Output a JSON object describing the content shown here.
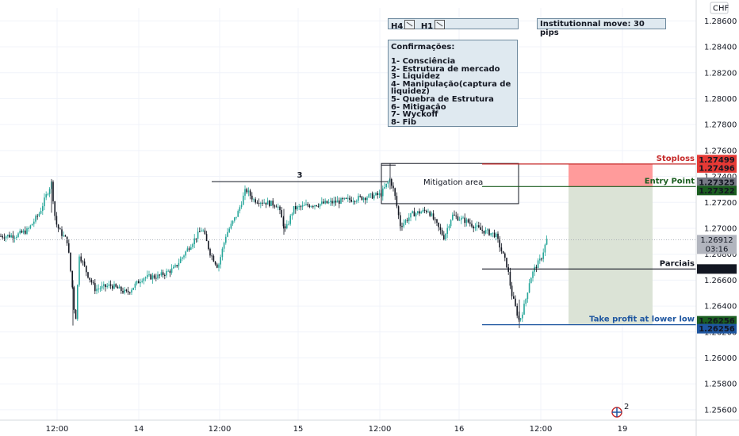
{
  "chart_data": {
    "type": "candlestick",
    "currency_label": "CHF",
    "y_ticks": [
      "1.28600",
      "1.28400",
      "1.28200",
      "1.28000",
      "1.27800",
      "1.27600",
      "1.27400",
      "1.27200",
      "1.27000",
      "1.26800",
      "1.26600",
      "1.26400",
      "1.26200",
      "1.26000",
      "1.25800",
      "1.25600"
    ],
    "x_ticks": [
      "12:00",
      "14",
      "12:00",
      "15",
      "12:00",
      "16",
      "12:00",
      "19"
    ],
    "ylim": [
      1.2552,
      1.287
    ],
    "series_trend": [
      [
        0,
        1.2694
      ],
      [
        20,
        1.26945
      ],
      [
        35,
        1.26985
      ],
      [
        50,
        1.2712
      ],
      [
        60,
        1.2728
      ],
      [
        65,
        1.2735
      ],
      [
        70,
        1.2705
      ],
      [
        75,
        1.2698
      ],
      [
        85,
        1.269
      ],
      [
        92,
        1.265
      ],
      [
        95,
        1.2625
      ],
      [
        100,
        1.268
      ],
      [
        110,
        1.2665
      ],
      [
        120,
        1.2653
      ],
      [
        140,
        1.2656
      ],
      [
        160,
        1.265
      ],
      [
        180,
        1.2662
      ],
      [
        200,
        1.2663
      ],
      [
        220,
        1.2669
      ],
      [
        240,
        1.2687
      ],
      [
        255,
        1.27
      ],
      [
        265,
        1.2681
      ],
      [
        275,
        1.267
      ],
      [
        285,
        1.2695
      ],
      [
        300,
        1.2712
      ],
      [
        310,
        1.273
      ],
      [
        320,
        1.2722
      ],
      [
        335,
        1.272
      ],
      [
        350,
        1.2718
      ],
      [
        360,
        1.2698
      ],
      [
        370,
        1.2715
      ],
      [
        390,
        1.2718
      ],
      [
        420,
        1.272
      ],
      [
        450,
        1.2723
      ],
      [
        470,
        1.2725
      ],
      [
        480,
        1.2726
      ],
      [
        492,
        1.2738
      ],
      [
        497,
        1.2728
      ],
      [
        505,
        1.2702
      ],
      [
        520,
        1.2711
      ],
      [
        540,
        1.2714
      ],
      [
        560,
        1.2693
      ],
      [
        570,
        1.271
      ],
      [
        590,
        1.2705
      ],
      [
        605,
        1.2699
      ],
      [
        625,
        1.2695
      ],
      [
        640,
        1.267
      ],
      [
        645,
        1.265
      ],
      [
        655,
        1.2628
      ],
      [
        662,
        1.2642
      ],
      [
        668,
        1.266
      ],
      [
        675,
        1.267
      ],
      [
        682,
        1.2676
      ],
      [
        690,
        1.2692
      ]
    ],
    "last_price": "1.26912",
    "countdown": "03:16",
    "price_labels": [
      {
        "price": 1.27499,
        "text": "1.27499",
        "color": "#e53935"
      },
      {
        "price": 1.27496,
        "text": "1.27496",
        "color": "#e53935"
      },
      {
        "price": 1.27325,
        "text": "1.27325",
        "color": "#787b86"
      },
      {
        "price": 1.27322,
        "text": "1.27322",
        "color": "#1b5e20"
      },
      {
        "price": 1.26686,
        "text": "1.26686",
        "color": "#131722"
      },
      {
        "price": 1.26256,
        "text": "1.26256",
        "color": "#1b5e20"
      },
      {
        "price": 1.26256,
        "text": "1.26256",
        "color": "#1e56a0"
      }
    ],
    "levels": [
      {
        "name": "Stoploss",
        "price": 1.27496,
        "color": "#c62828"
      },
      {
        "name": "Entry Point",
        "price": 1.27322,
        "color": "#1b5e20"
      },
      {
        "name": "Parciais",
        "price": 1.26686,
        "color": "#131722"
      },
      {
        "name": "Take profit at lower low",
        "price": 1.26256,
        "color": "#1e56a0"
      }
    ],
    "structure_label": "3",
    "structure_price": 1.2736,
    "mitigation_label": "Mitigation area",
    "mitigation_zone": [
      1.2719,
      1.275
    ]
  },
  "timeframes": {
    "h4": "H4",
    "h1": "H1"
  },
  "institutional_move": "Institutionnal move: 30 pips",
  "confirmations": {
    "title": "Confirmações:",
    "items": [
      "1- Consciência",
      "2- Estrutura de mercado",
      "3- Liquidez",
      "4- Manipulação(captura de",
      "liquidez)",
      "5- Quebra de Estrutura",
      "6- Mitigação",
      "7- Wyckoff",
      "8- Fib"
    ]
  },
  "badge_count": "2",
  "colors": {
    "up": "#26a69a",
    "down": "#131722",
    "stop_zone": "#ff9b9b",
    "target_zone": "#dbe3d6"
  }
}
